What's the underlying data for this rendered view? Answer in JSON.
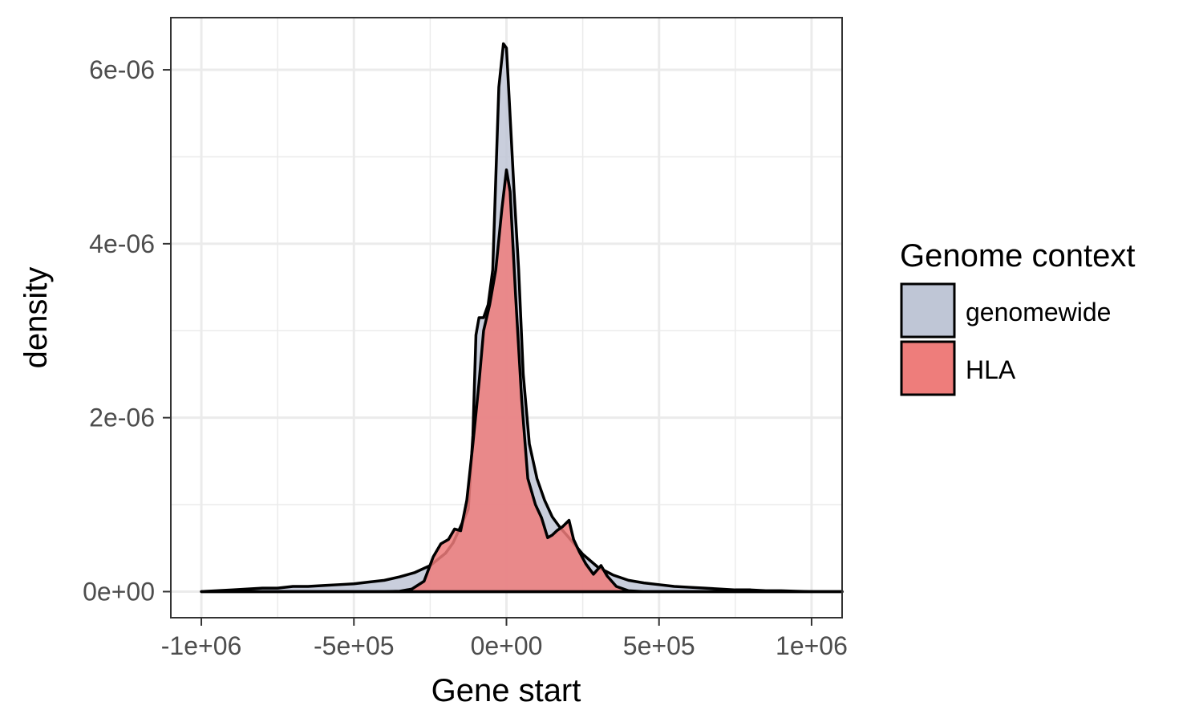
{
  "chart_data": {
    "type": "area",
    "title": "",
    "xlabel": "Gene start",
    "ylabel": "density",
    "xlim": [
      -1100000,
      1100000
    ],
    "ylim": [
      -3e-07,
      6.6e-06
    ],
    "x_ticks": [
      -1000000,
      -500000,
      0,
      500000,
      1000000
    ],
    "x_tick_labels": [
      "-1e+06",
      "-5e+05",
      "0e+00",
      "5e+05",
      "1e+06"
    ],
    "y_ticks": [
      0,
      2e-06,
      4e-06,
      6e-06
    ],
    "y_tick_labels": [
      "0e+00",
      "2e-06",
      "4e-06",
      "6e-06"
    ],
    "grid": true,
    "legend": {
      "title": "Genome context",
      "position": "right"
    },
    "series": [
      {
        "name": "genomewide",
        "color": "#bfc6d6",
        "points": [
          [
            -1000000,
            0.0
          ],
          [
            -950000,
            1e-08
          ],
          [
            -900000,
            2e-08
          ],
          [
            -850000,
            3e-08
          ],
          [
            -800000,
            4e-08
          ],
          [
            -750000,
            4e-08
          ],
          [
            -700000,
            6e-08
          ],
          [
            -650000,
            6e-08
          ],
          [
            -600000,
            7e-08
          ],
          [
            -550000,
            8e-08
          ],
          [
            -500000,
            9e-08
          ],
          [
            -450000,
            1.1e-07
          ],
          [
            -400000,
            1.3e-07
          ],
          [
            -350000,
            1.7e-07
          ],
          [
            -300000,
            2.2e-07
          ],
          [
            -250000,
            3e-07
          ],
          [
            -200000,
            4.4e-07
          ],
          [
            -175000,
            5.6e-07
          ],
          [
            -150000,
            7.5e-07
          ],
          [
            -125000,
            9.5e-07
          ],
          [
            -110000,
            1.8e-06
          ],
          [
            -100000,
            2.95e-06
          ],
          [
            -90000,
            3.15e-06
          ],
          [
            -75000,
            3.15e-06
          ],
          [
            -60000,
            3.3e-06
          ],
          [
            -45000,
            3.7e-06
          ],
          [
            -25000,
            5.8e-06
          ],
          [
            -10000,
            6.3e-06
          ],
          [
            0,
            6.25e-06
          ],
          [
            10000,
            5.6e-06
          ],
          [
            25000,
            4.6e-06
          ],
          [
            40000,
            3.7e-06
          ],
          [
            55000,
            2.5e-06
          ],
          [
            75000,
            1.7e-06
          ],
          [
            100000,
            1.3e-06
          ],
          [
            125000,
            1.05e-06
          ],
          [
            150000,
            8.6e-07
          ],
          [
            175000,
            7.4e-07
          ],
          [
            200000,
            6.4e-07
          ],
          [
            250000,
            4.3e-07
          ],
          [
            300000,
            2.8e-07
          ],
          [
            350000,
            1.9e-07
          ],
          [
            400000,
            1.3e-07
          ],
          [
            450000,
            1e-07
          ],
          [
            500000,
            8e-08
          ],
          [
            550000,
            6e-08
          ],
          [
            600000,
            5e-08
          ],
          [
            650000,
            4e-08
          ],
          [
            700000,
            3e-08
          ],
          [
            750000,
            2e-08
          ],
          [
            800000,
            2e-08
          ],
          [
            850000,
            1e-08
          ],
          [
            900000,
            1e-08
          ],
          [
            950000,
            5e-09
          ],
          [
            1000000,
            0.0
          ],
          [
            1100000,
            0.0
          ]
        ]
      },
      {
        "name": "HLA",
        "color": "#ee7d7b",
        "points": [
          [
            -1000000,
            0.0
          ],
          [
            -900000,
            0.0
          ],
          [
            -800000,
            0.0
          ],
          [
            -700000,
            0.0
          ],
          [
            -600000,
            0.0
          ],
          [
            -500000,
            0.0
          ],
          [
            -400000,
            0.0
          ],
          [
            -350000,
            5e-09
          ],
          [
            -310000,
            3e-08
          ],
          [
            -270000,
            1.2e-07
          ],
          [
            -240000,
            4e-07
          ],
          [
            -215000,
            5.5e-07
          ],
          [
            -190000,
            6e-07
          ],
          [
            -170000,
            7.2e-07
          ],
          [
            -150000,
            7e-07
          ],
          [
            -130000,
            1.05e-06
          ],
          [
            -110000,
            1.7e-06
          ],
          [
            -90000,
            2.4e-06
          ],
          [
            -75000,
            3e-06
          ],
          [
            -55000,
            3.3e-06
          ],
          [
            -35000,
            3.7e-06
          ],
          [
            -15000,
            4.4e-06
          ],
          [
            0,
            4.85e-06
          ],
          [
            12000,
            4.6e-06
          ],
          [
            30000,
            3.4e-06
          ],
          [
            50000,
            2.2e-06
          ],
          [
            70000,
            1.3e-06
          ],
          [
            95000,
            1e-06
          ],
          [
            115000,
            8.5e-07
          ],
          [
            135000,
            6.2e-07
          ],
          [
            150000,
            6.5e-07
          ],
          [
            165000,
            7e-07
          ],
          [
            185000,
            7.5e-07
          ],
          [
            205000,
            8.2e-07
          ],
          [
            220000,
            6e-07
          ],
          [
            240000,
            4.5e-07
          ],
          [
            260000,
            3.2e-07
          ],
          [
            285000,
            2e-07
          ],
          [
            310000,
            3e-07
          ],
          [
            330000,
            1.8e-07
          ],
          [
            360000,
            6e-08
          ],
          [
            400000,
            1e-08
          ],
          [
            450000,
            0.0
          ],
          [
            600000,
            0.0
          ],
          [
            800000,
            0.0
          ],
          [
            1000000,
            0.0
          ],
          [
            1100000,
            0.0
          ]
        ]
      }
    ]
  }
}
